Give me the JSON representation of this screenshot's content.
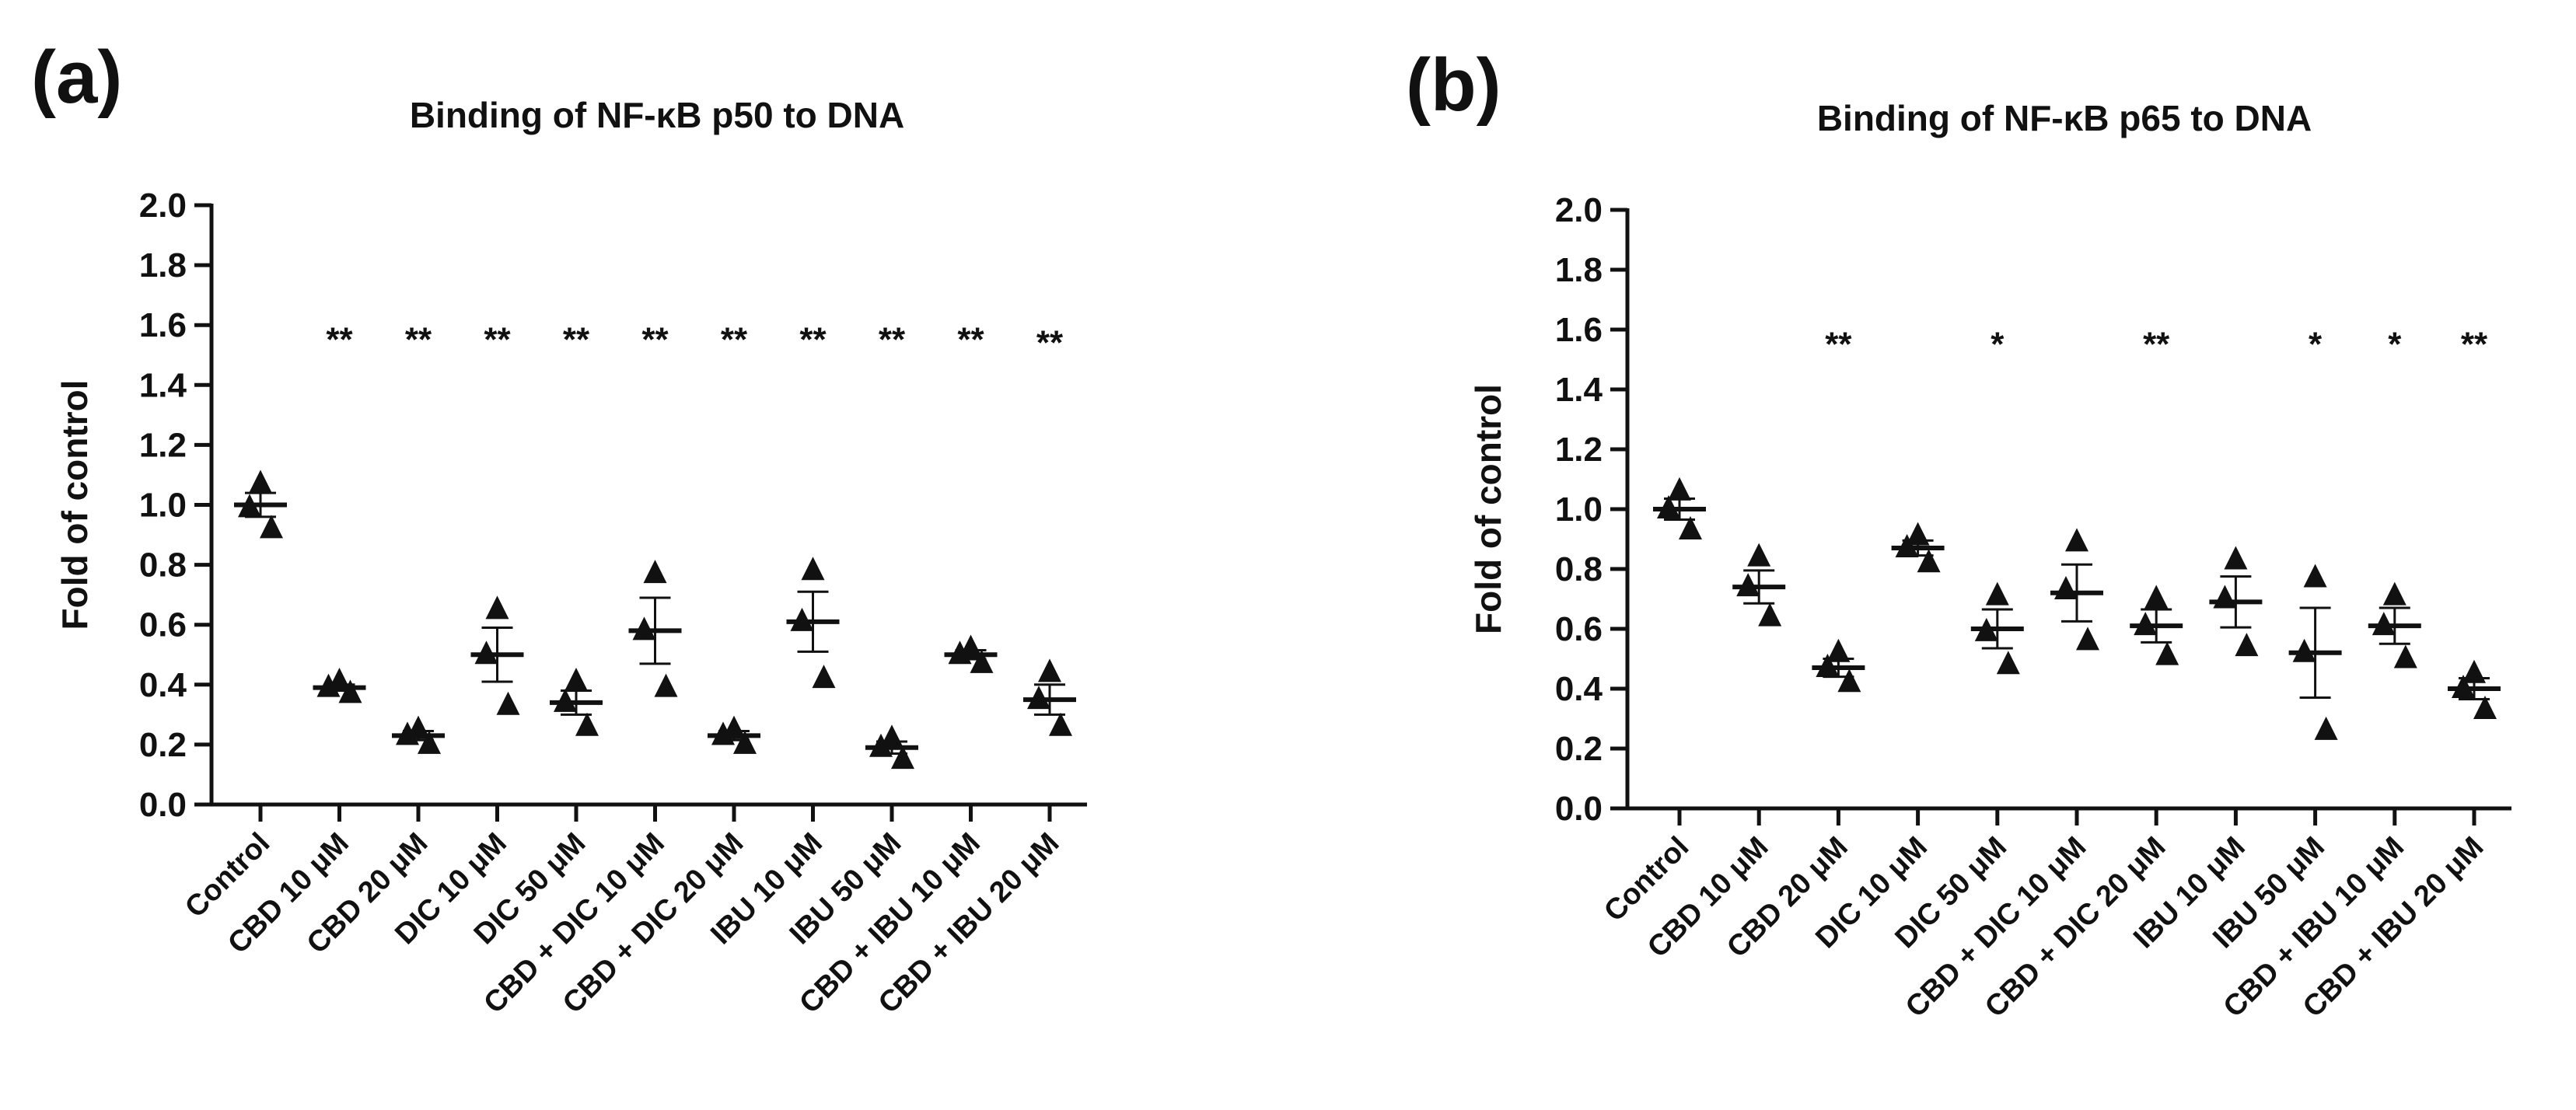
{
  "chart_data": [
    {
      "panel_label": "(a)",
      "type": "scatter",
      "title": "Binding of NF-κB p50 to DNA",
      "ylabel": "Fold of control",
      "xlabel": "",
      "ylim": [
        0.0,
        2.0
      ],
      "y_ticks": [
        "0.0",
        "0.2",
        "0.4",
        "0.6",
        "0.8",
        "1.0",
        "1.2",
        "1.4",
        "1.6",
        "1.8",
        "2.0"
      ],
      "categories": [
        "Control",
        "CBD 10 μM",
        "CBD 20 μM",
        "DIC 10 μM",
        "DIC 50 μM",
        "CBD + DIC 10 μM",
        "CBD + DIC 20 μM",
        "IBU 10 μM",
        "IBU 50 μM",
        "CBD + IBU 10 μM",
        "CBD + IBU 20 μM"
      ],
      "points": [
        [
          1.07,
          0.99,
          0.92
        ],
        [
          0.41,
          0.39,
          0.37
        ],
        [
          0.25,
          0.23,
          0.2
        ],
        [
          0.65,
          0.5,
          0.33
        ],
        [
          0.41,
          0.34,
          0.26
        ],
        [
          0.77,
          0.58,
          0.39
        ],
        [
          0.25,
          0.23,
          0.2
        ],
        [
          0.78,
          0.61,
          0.42
        ],
        [
          0.22,
          0.19,
          0.15
        ],
        [
          0.52,
          0.5,
          0.47
        ],
        [
          0.44,
          0.35,
          0.26
        ]
      ],
      "means": [
        1.0,
        0.39,
        0.23,
        0.5,
        0.34,
        0.58,
        0.23,
        0.61,
        0.19,
        0.5,
        0.35
      ],
      "sem": [
        0.04,
        0.01,
        0.015,
        0.09,
        0.04,
        0.11,
        0.015,
        0.1,
        0.02,
        0.015,
        0.05
      ],
      "significance": [
        "",
        "**",
        "**",
        "**",
        "**",
        "**",
        "**",
        "**",
        "**",
        "**",
        "**"
      ],
      "sig_level": [
        null,
        1.55,
        1.55,
        1.55,
        1.55,
        1.55,
        1.55,
        1.55,
        1.55,
        1.55,
        1.54
      ]
    },
    {
      "panel_label": "(b)",
      "type": "scatter",
      "title": "Binding of NF-κB p65 to DNA",
      "ylabel": "Fold of control",
      "xlabel": "",
      "ylim": [
        0.0,
        2.0
      ],
      "y_ticks": [
        "0.0",
        "0.2",
        "0.4",
        "0.6",
        "0.8",
        "1.0",
        "1.2",
        "1.4",
        "1.6",
        "1.8",
        "2.0"
      ],
      "categories": [
        "Control",
        "CBD 10 μM",
        "CBD 20 μM",
        "DIC 10 μM",
        "DIC 50 μM",
        "CBD + DIC 10 μM",
        "CBD + DIC 20 μM",
        "IBU 10 μM",
        "IBU 50 μM",
        "CBD + IBU 10 μM",
        "CBD + IBU 20 μM"
      ],
      "points": [
        [
          1.06,
          1.0,
          0.93
        ],
        [
          0.84,
          0.74,
          0.64
        ],
        [
          0.52,
          0.47,
          0.42
        ],
        [
          0.91,
          0.87,
          0.82
        ],
        [
          0.71,
          0.59,
          0.48
        ],
        [
          0.89,
          0.73,
          0.56
        ],
        [
          0.7,
          0.61,
          0.51
        ],
        [
          0.83,
          0.7,
          0.54
        ],
        [
          0.77,
          0.52,
          0.26
        ],
        [
          0.71,
          0.61,
          0.5
        ],
        [
          0.45,
          0.4,
          0.33
        ]
      ],
      "means": [
        1.0,
        0.74,
        0.47,
        0.87,
        0.6,
        0.72,
        0.61,
        0.69,
        0.52,
        0.61,
        0.4
      ],
      "sem": [
        0.035,
        0.055,
        0.03,
        0.025,
        0.065,
        0.095,
        0.055,
        0.085,
        0.15,
        0.06,
        0.035
      ],
      "significance": [
        "",
        "",
        "**",
        "",
        "*",
        "",
        "**",
        "",
        "*",
        "*",
        "**"
      ],
      "sig_level": [
        null,
        null,
        1.55,
        null,
        1.55,
        null,
        1.55,
        null,
        1.55,
        1.55,
        1.55
      ]
    }
  ]
}
